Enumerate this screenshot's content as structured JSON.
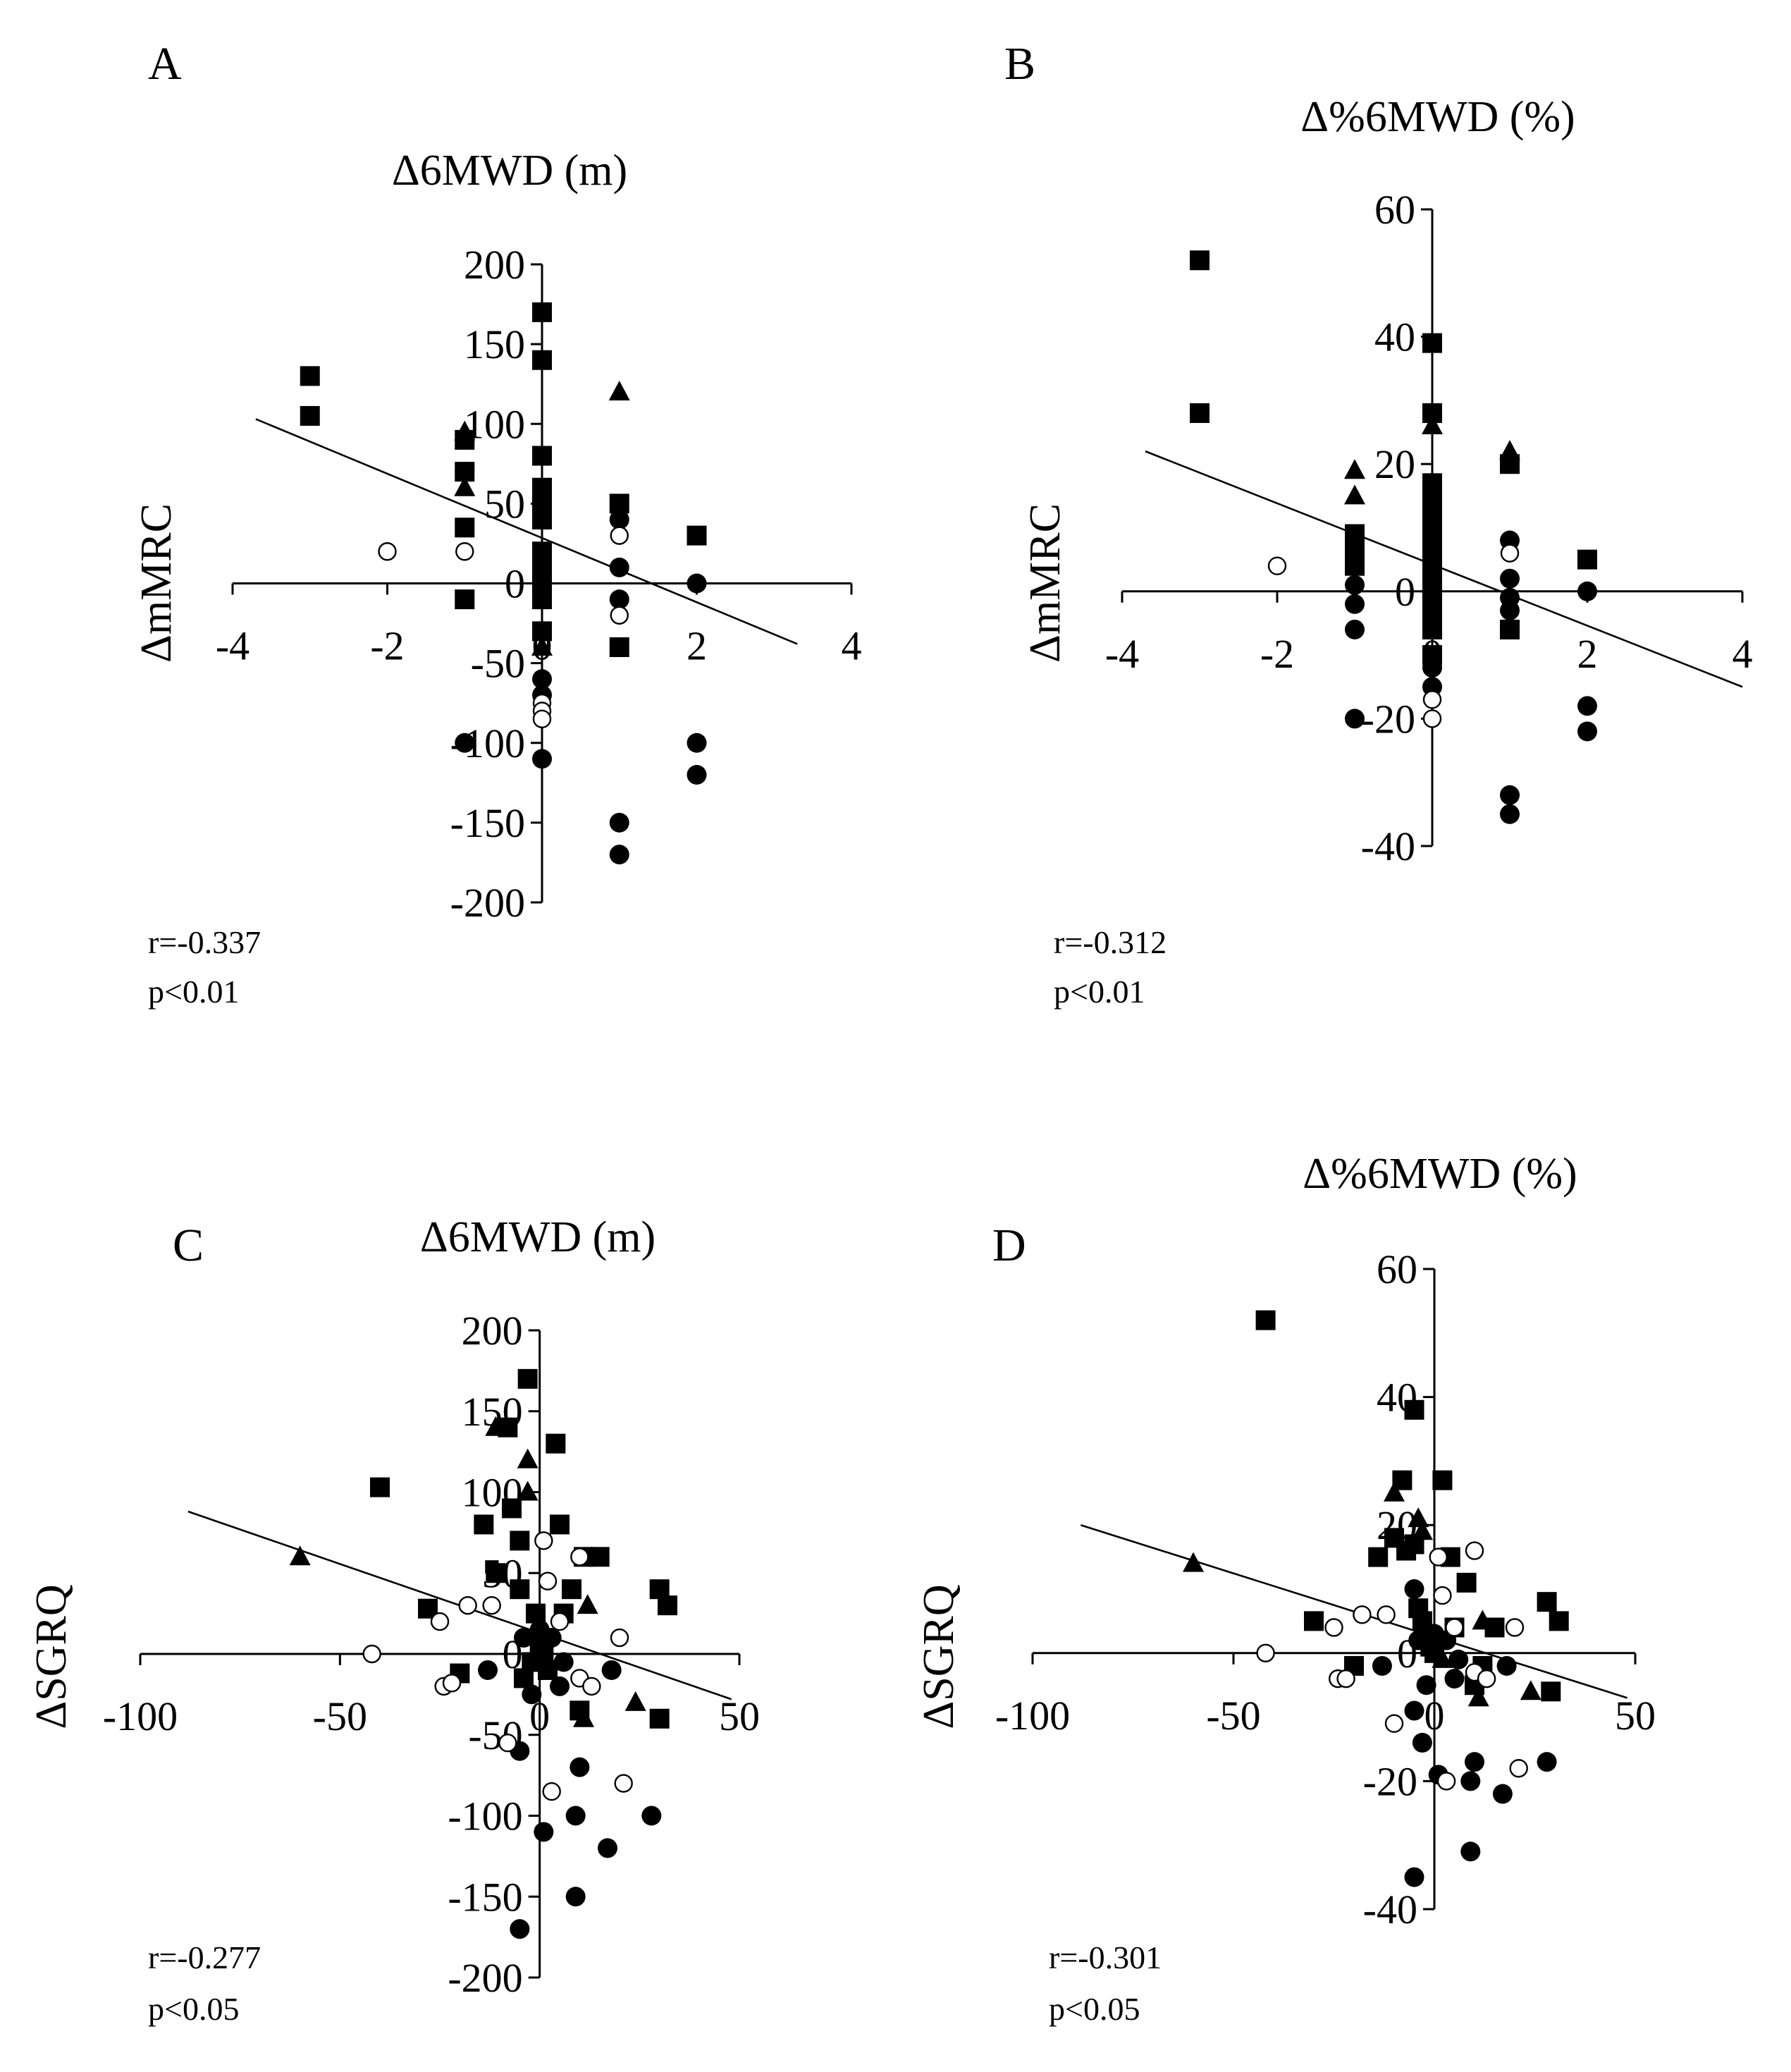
{
  "chart_data": [
    {
      "type": "scatter",
      "panel_label": "A",
      "title": "Δ6MWD (m)",
      "ylabel": "ΔmMRC",
      "xlabel": "",
      "xlim": [
        -4,
        4
      ],
      "ylim": [
        -200,
        200
      ],
      "x_ticks": [
        "-4",
        "-2",
        "0",
        "2",
        "4"
      ],
      "y_ticks": [
        "200",
        "150",
        "100",
        "50",
        "0",
        "-50",
        "-100",
        "-150",
        "-200"
      ],
      "grid": false,
      "stats": [
        "r=-0.337",
        "p<0.01"
      ],
      "trendline": [
        [
          -3.7,
          103
        ],
        [
          3.3,
          -38
        ]
      ],
      "series": [
        {
          "name": "filled squares",
          "marker": "square",
          "points": [
            [
              -3,
              130
            ],
            [
              -3,
              105
            ],
            [
              -1,
              90
            ],
            [
              -1,
              70
            ],
            [
              -1,
              35
            ],
            [
              -1,
              -10
            ],
            [
              0,
              170
            ],
            [
              0,
              140
            ],
            [
              0,
              80
            ],
            [
              0,
              60
            ],
            [
              0,
              50
            ],
            [
              0,
              40
            ],
            [
              0,
              20
            ],
            [
              0,
              10
            ],
            [
              0,
              0
            ],
            [
              0,
              -10
            ],
            [
              0,
              -30
            ],
            [
              1,
              50
            ],
            [
              1,
              -40
            ],
            [
              2,
              30
            ]
          ]
        },
        {
          "name": "filled triangles",
          "marker": "triangle",
          "points": [
            [
              -1,
              95
            ],
            [
              -1,
              60
            ],
            [
              0,
              -40
            ],
            [
              1,
              120
            ]
          ]
        },
        {
          "name": "filled circles",
          "marker": "circle",
          "points": [
            [
              -1,
              70
            ],
            [
              -1,
              -100
            ],
            [
              0,
              -60
            ],
            [
              0,
              -70
            ],
            [
              0,
              -110
            ],
            [
              1,
              40
            ],
            [
              1,
              10
            ],
            [
              1,
              -10
            ],
            [
              1,
              -150
            ],
            [
              1,
              -170
            ],
            [
              2,
              0
            ],
            [
              2,
              -100
            ],
            [
              2,
              -120
            ]
          ]
        },
        {
          "name": "open circles",
          "marker": "open-circle",
          "points": [
            [
              -2,
              20
            ],
            [
              -1,
              20
            ],
            [
              0,
              -75
            ],
            [
              0,
              -80
            ],
            [
              0,
              -85
            ],
            [
              1,
              30
            ],
            [
              1,
              -20
            ]
          ]
        }
      ]
    },
    {
      "type": "scatter",
      "panel_label": "B",
      "title": "Δ%6MWD (%)",
      "ylabel": "ΔmMRC",
      "xlabel": "",
      "xlim": [
        -4,
        4
      ],
      "ylim": [
        -40,
        60
      ],
      "x_ticks": [
        "-4",
        "-2",
        "0",
        "2",
        "4"
      ],
      "y_ticks": [
        "60",
        "40",
        "20",
        "0",
        "-20",
        "-40"
      ],
      "grid": false,
      "stats": [
        "r=-0.312",
        "p<0.01"
      ],
      "trendline": [
        [
          -3.7,
          22
        ],
        [
          4,
          -15
        ]
      ],
      "series": [
        {
          "name": "filled squares",
          "marker": "square",
          "points": [
            [
              -3,
              52
            ],
            [
              -3,
              28
            ],
            [
              -1,
              9
            ],
            [
              -1,
              6
            ],
            [
              -1,
              4
            ],
            [
              0,
              39
            ],
            [
              0,
              28
            ],
            [
              0,
              17
            ],
            [
              0,
              14
            ],
            [
              0,
              11
            ],
            [
              0,
              9
            ],
            [
              0,
              7
            ],
            [
              0,
              5
            ],
            [
              0,
              3
            ],
            [
              0,
              1
            ],
            [
              0,
              -1
            ],
            [
              0,
              -3
            ],
            [
              0,
              -6
            ],
            [
              0,
              -10
            ],
            [
              1,
              20
            ],
            [
              1,
              -6
            ],
            [
              2,
              5
            ]
          ]
        },
        {
          "name": "filled triangles",
          "marker": "triangle",
          "points": [
            [
              -1,
              19
            ],
            [
              -1,
              15
            ],
            [
              0,
              26
            ],
            [
              1,
              22
            ]
          ]
        },
        {
          "name": "filled circles",
          "marker": "circle",
          "points": [
            [
              -1,
              1
            ],
            [
              -1,
              -2
            ],
            [
              -1,
              -6
            ],
            [
              -1,
              -20
            ],
            [
              0,
              -12
            ],
            [
              0,
              -15
            ],
            [
              1,
              8
            ],
            [
              1,
              2
            ],
            [
              1,
              -1
            ],
            [
              1,
              -3
            ],
            [
              1,
              -32
            ],
            [
              1,
              -35
            ],
            [
              2,
              0
            ],
            [
              2,
              -18
            ],
            [
              2,
              -22
            ]
          ]
        },
        {
          "name": "open circles",
          "marker": "open-circle",
          "points": [
            [
              -2,
              4
            ],
            [
              0,
              -17
            ],
            [
              0,
              -20
            ],
            [
              1,
              6
            ]
          ]
        }
      ]
    },
    {
      "type": "scatter",
      "panel_label": "C",
      "title": "Δ6MWD (m)",
      "ylabel": "ΔSGRQ",
      "xlabel": "",
      "xlim": [
        -100,
        50
      ],
      "ylim": [
        -200,
        200
      ],
      "x_ticks": [
        "-100",
        "-50",
        "0",
        "50"
      ],
      "y_ticks": [
        "200",
        "150",
        "100",
        "50",
        "0",
        "-50",
        "-100",
        "-150",
        "-200"
      ],
      "grid": false,
      "stats": [
        "r=-0.277",
        "p<0.05"
      ],
      "trendline": [
        [
          -88,
          88
        ],
        [
          48,
          -28
        ]
      ],
      "series": [
        {
          "name": "filled squares",
          "marker": "square",
          "points": [
            [
              -40,
              103
            ],
            [
              -28,
              28
            ],
            [
              -20,
              -12
            ],
            [
              -14,
              80
            ],
            [
              -11,
              50
            ],
            [
              -8,
              140
            ],
            [
              -7,
              90
            ],
            [
              -5,
              70
            ],
            [
              -5,
              40
            ],
            [
              -4,
              -15
            ],
            [
              -3,
              170
            ],
            [
              -2,
              -5
            ],
            [
              -1,
              25
            ],
            [
              0,
              5
            ],
            [
              1,
              0
            ],
            [
              2,
              -10
            ],
            [
              4,
              130
            ],
            [
              5,
              80
            ],
            [
              6,
              25
            ],
            [
              8,
              40
            ],
            [
              10,
              -35
            ],
            [
              11,
              60
            ],
            [
              15,
              60
            ],
            [
              30,
              40
            ],
            [
              32,
              30
            ],
            [
              30,
              -40
            ]
          ]
        },
        {
          "name": "filled triangles",
          "marker": "triangle",
          "points": [
            [
              -60,
              60
            ],
            [
              -11,
              140
            ],
            [
              -3,
              120
            ],
            [
              -3,
              100
            ],
            [
              -1,
              15
            ],
            [
              2,
              -5
            ],
            [
              12,
              30
            ],
            [
              11,
              -40
            ],
            [
              24,
              -30
            ]
          ]
        },
        {
          "name": "filled circles",
          "marker": "circle",
          "points": [
            [
              -13,
              -10
            ],
            [
              -5,
              -60
            ],
            [
              -4,
              10
            ],
            [
              -2,
              -25
            ],
            [
              0,
              15
            ],
            [
              1,
              -110
            ],
            [
              3,
              10
            ],
            [
              5,
              -20
            ],
            [
              6,
              -5
            ],
            [
              9,
              -150
            ],
            [
              9,
              -100
            ],
            [
              10,
              -70
            ],
            [
              17,
              -120
            ],
            [
              18,
              -10
            ],
            [
              28,
              -100
            ],
            [
              -5,
              -170
            ]
          ]
        },
        {
          "name": "open circles",
          "marker": "open-circle",
          "points": [
            [
              -42,
              0
            ],
            [
              -25,
              20
            ],
            [
              -24,
              -20
            ],
            [
              -22,
              -18
            ],
            [
              -18,
              30
            ],
            [
              -12,
              30
            ],
            [
              -8,
              -55
            ],
            [
              1,
              70
            ],
            [
              2,
              45
            ],
            [
              3,
              -85
            ],
            [
              5,
              20
            ],
            [
              10,
              60
            ],
            [
              10,
              -15
            ],
            [
              13,
              -20
            ],
            [
              20,
              10
            ],
            [
              21,
              -80
            ]
          ]
        }
      ]
    },
    {
      "type": "scatter",
      "panel_label": "D",
      "title": "Δ%6MWD (%)",
      "ylabel": "ΔSGRQ",
      "xlabel": "",
      "xlim": [
        -100,
        50
      ],
      "ylim": [
        -40,
        60
      ],
      "x_ticks": [
        "-100",
        "-50",
        "0",
        "50"
      ],
      "y_ticks": [
        "60",
        "40",
        "20",
        "0",
        "-20",
        "-40"
      ],
      "grid": false,
      "stats": [
        "r=-0.301",
        "p<0.05"
      ],
      "trendline": [
        [
          -88,
          20
        ],
        [
          48,
          -7
        ]
      ],
      "series": [
        {
          "name": "filled squares",
          "marker": "square",
          "points": [
            [
              -42,
              52
            ],
            [
              -30,
              5
            ],
            [
              -20,
              -2
            ],
            [
              -14,
              15
            ],
            [
              -10,
              18
            ],
            [
              -8,
              27
            ],
            [
              -7,
              16
            ],
            [
              -5,
              38
            ],
            [
              -5,
              17
            ],
            [
              -4,
              7
            ],
            [
              -3,
              5
            ],
            [
              -2,
              3
            ],
            [
              -1,
              1
            ],
            [
              0,
              0
            ],
            [
              2,
              27
            ],
            [
              4,
              15
            ],
            [
              5,
              4
            ],
            [
              8,
              11
            ],
            [
              10,
              -5
            ],
            [
              12,
              -2
            ],
            [
              15,
              4
            ],
            [
              28,
              8
            ],
            [
              31,
              5
            ],
            [
              29,
              -6
            ]
          ]
        },
        {
          "name": "filled triangles",
          "marker": "triangle",
          "points": [
            [
              -60,
              14
            ],
            [
              -10,
              25
            ],
            [
              -4,
              21
            ],
            [
              -3,
              19
            ],
            [
              -1,
              3
            ],
            [
              2,
              -1
            ],
            [
              12,
              5
            ],
            [
              11,
              -7
            ],
            [
              24,
              -6
            ]
          ]
        },
        {
          "name": "filled circles",
          "marker": "circle",
          "points": [
            [
              -13,
              -2
            ],
            [
              -5,
              -9
            ],
            [
              -4,
              2
            ],
            [
              -2,
              -5
            ],
            [
              0,
              3
            ],
            [
              1,
              -19
            ],
            [
              3,
              2
            ],
            [
              5,
              -4
            ],
            [
              6,
              -1
            ],
            [
              9,
              -31
            ],
            [
              9,
              -20
            ],
            [
              10,
              -17
            ],
            [
              17,
              -22
            ],
            [
              18,
              -2
            ],
            [
              28,
              -17
            ],
            [
              -5,
              -35
            ],
            [
              -5,
              10
            ],
            [
              -3,
              -14
            ]
          ]
        },
        {
          "name": "open circles",
          "marker": "open-circle",
          "points": [
            [
              -42,
              0
            ],
            [
              -25,
              4
            ],
            [
              -24,
              -4
            ],
            [
              -22,
              -4
            ],
            [
              -18,
              6
            ],
            [
              -12,
              6
            ],
            [
              -10,
              -11
            ],
            [
              1,
              15
            ],
            [
              2,
              9
            ],
            [
              3,
              -20
            ],
            [
              5,
              4
            ],
            [
              10,
              16
            ],
            [
              10,
              -3
            ],
            [
              13,
              -4
            ],
            [
              20,
              4
            ],
            [
              21,
              -18
            ]
          ]
        }
      ]
    }
  ]
}
